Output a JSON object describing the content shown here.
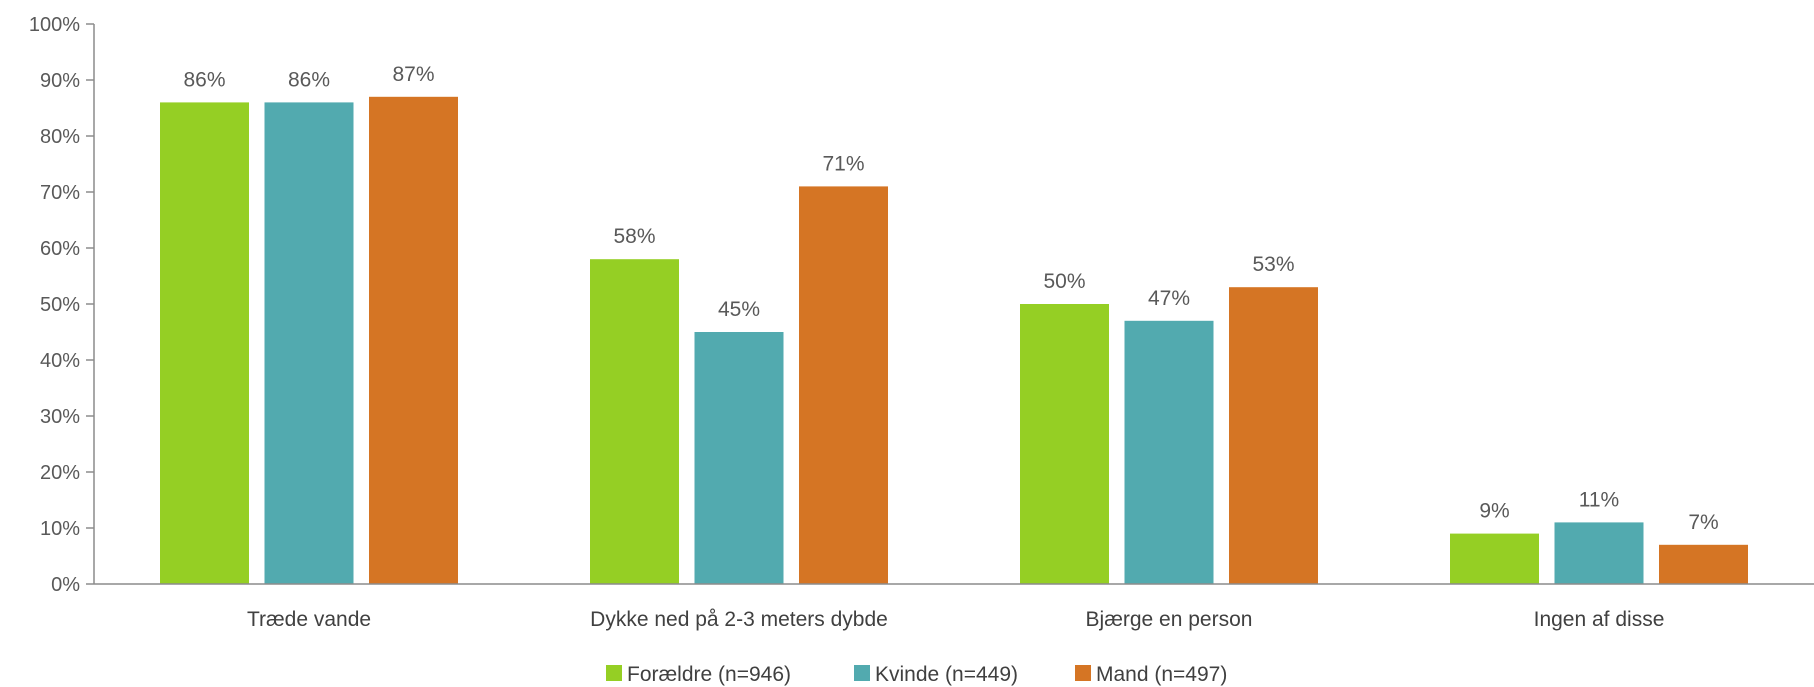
{
  "chart_data": {
    "type": "bar",
    "categories": [
      "Træde vande",
      "Dykke ned på 2-3 meters dybde",
      "Bjærge en person",
      "Ingen af disse"
    ],
    "series": [
      {
        "name": "Forældre (n=946)",
        "values": [
          86,
          58,
          50,
          9
        ],
        "color": "#95cf24"
      },
      {
        "name": "Kvinde (n=449)",
        "values": [
          86,
          45,
          47,
          11
        ],
        "color": "#52aaaf"
      },
      {
        "name": "Mand (n=497)",
        "values": [
          87,
          71,
          53,
          7
        ],
        "color": "#d57524"
      }
    ],
    "ylim": [
      0,
      100
    ],
    "yticks": [
      0,
      10,
      20,
      30,
      40,
      50,
      60,
      70,
      80,
      90,
      100
    ],
    "value_format": "{v}%",
    "title": "",
    "xlabel": "",
    "ylabel": "",
    "grid": false,
    "legend_position": "bottom"
  }
}
